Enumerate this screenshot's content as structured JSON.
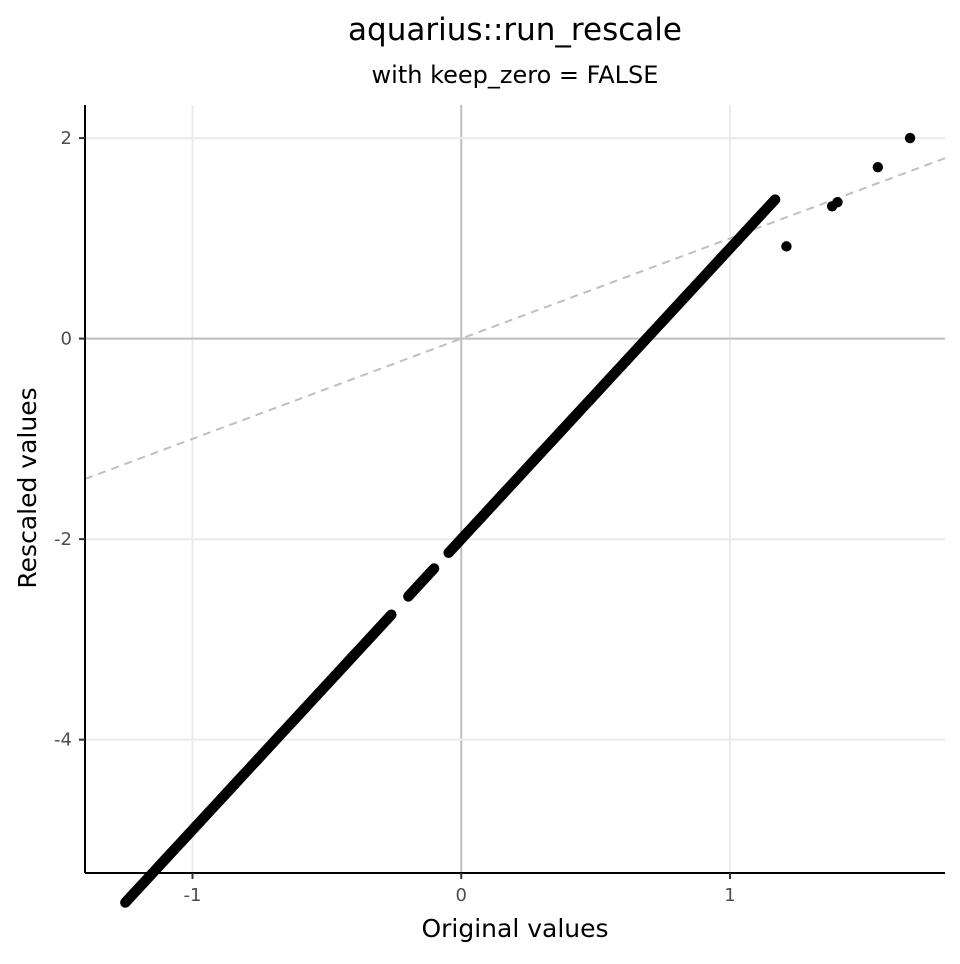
{
  "chart_data": {
    "type": "scatter",
    "title": "aquarius::run_rescale",
    "subtitle": "with keep_zero = FALSE",
    "xlabel": "Original values",
    "ylabel": "Rescaled values",
    "xlim": [
      -1.4,
      1.8
    ],
    "ylim": [
      -5.33,
      2.33
    ],
    "x_ticks": [
      -1,
      0,
      1
    ],
    "x_tick_labels": [
      "-1",
      "0",
      "1"
    ],
    "y_ticks": [
      -4,
      -2,
      0,
      2
    ],
    "y_tick_labels": [
      "-4",
      "-2",
      "0",
      "2"
    ],
    "grid": true,
    "zero_lines": true,
    "reference_line": {
      "slope": 1,
      "intercept": 0,
      "style": "dashed",
      "color": "#bfbfbf"
    },
    "series_line": {
      "slope": 2.9,
      "intercept": -2,
      "x_range": [
        -1.25,
        1.17
      ]
    },
    "outlier_points": [
      {
        "x": 1.21,
        "y": 0.92
      },
      {
        "x": 1.38,
        "y": 1.32
      },
      {
        "x": 1.4,
        "y": 1.36
      },
      {
        "x": 1.55,
        "y": 1.71
      },
      {
        "x": 1.67,
        "y": 2.0
      }
    ],
    "gaps": [
      [
        -0.26,
        -0.2
      ],
      [
        -0.1,
        -0.05
      ]
    ],
    "colors": {
      "points": "#000000",
      "grid_major": "#ebebeb",
      "zero_line": "#bebebe",
      "reference_line": "#bfbfbf",
      "axis": "#000000"
    }
  }
}
